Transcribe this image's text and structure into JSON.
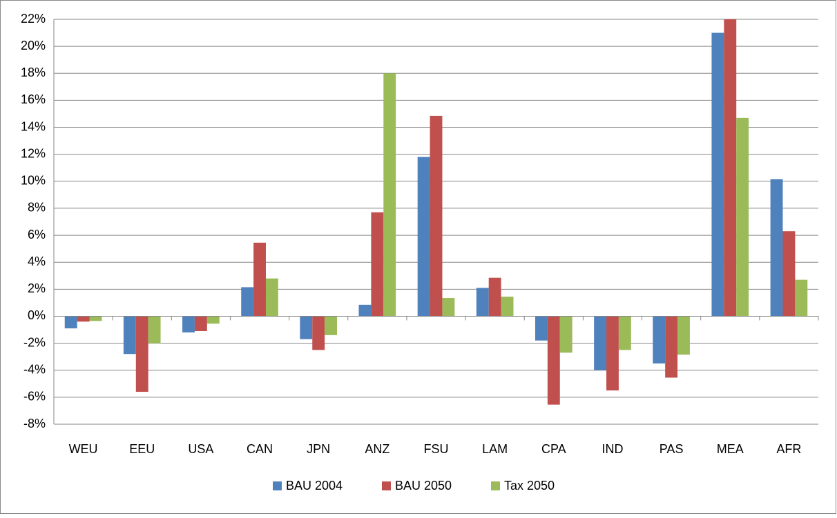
{
  "chart_data": {
    "type": "bar",
    "categories": [
      "WEU",
      "EEU",
      "USA",
      "CAN",
      "JPN",
      "ANZ",
      "FSU",
      "LAM",
      "CPA",
      "IND",
      "PAS",
      "MEA",
      "AFR"
    ],
    "series": [
      {
        "name": "BAU 2004",
        "color": "#4f81bd",
        "values": [
          -0.9,
          -2.8,
          -1.2,
          2.15,
          -1.7,
          0.85,
          11.8,
          2.1,
          -1.8,
          -4.0,
          -3.5,
          21.0,
          10.15
        ]
      },
      {
        "name": "BAU 2050",
        "color": "#c0504d",
        "values": [
          -0.4,
          -5.6,
          -1.1,
          5.45,
          -2.5,
          7.7,
          14.85,
          2.85,
          -6.55,
          -5.5,
          -4.55,
          22.0,
          6.3
        ]
      },
      {
        "name": "Tax 2050",
        "color": "#9bbb59",
        "values": [
          -0.35,
          -2.0,
          -0.55,
          2.8,
          -1.4,
          18.0,
          1.35,
          1.45,
          -2.7,
          -2.5,
          -2.85,
          14.7,
          2.7
        ]
      }
    ],
    "ylim": [
      -8,
      22
    ],
    "yticks": [
      {
        "value": -8,
        "label": "-8%"
      },
      {
        "value": -6,
        "label": "-6%"
      },
      {
        "value": -4,
        "label": "-4%"
      },
      {
        "value": -2,
        "label": "-2%"
      },
      {
        "value": 0,
        "label": "0%"
      },
      {
        "value": 2,
        "label": "2%"
      },
      {
        "value": 4,
        "label": "4%"
      },
      {
        "value": 6,
        "label": "6%"
      },
      {
        "value": 8,
        "label": "8%"
      },
      {
        "value": 10,
        "label": "10%"
      },
      {
        "value": 12,
        "label": "12%"
      },
      {
        "value": 14,
        "label": "14%"
      },
      {
        "value": 16,
        "label": "16%"
      },
      {
        "value": 18,
        "label": "18%"
      },
      {
        "value": 20,
        "label": "20%"
      },
      {
        "value": 22,
        "label": "22%"
      }
    ],
    "grid": true,
    "legend": "bottom"
  }
}
